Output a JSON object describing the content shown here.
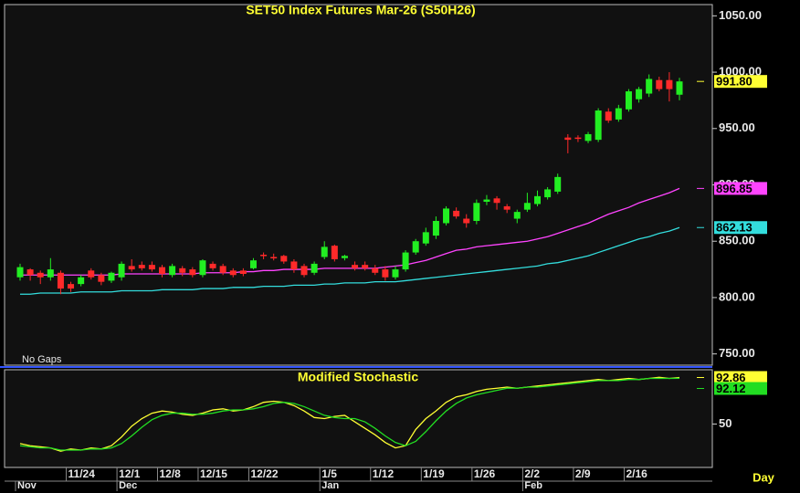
{
  "chart_data": [
    {
      "type": "candlestick",
      "title": "SET50 Index Futures Mar-26 (S50H26)",
      "note": "No Gaps",
      "up_color": "#22ee22",
      "down_color": "#ff2a2a",
      "last_label": "991.80",
      "label_color": "#ffff33",
      "open": [
        818,
        825,
        822,
        818,
        822,
        812,
        812,
        824,
        820,
        815,
        818,
        828,
        829,
        829,
        827,
        820,
        826,
        825,
        820,
        830,
        828,
        824,
        824,
        826,
        838,
        836,
        837,
        832,
        828,
        822,
        836,
        846,
        835,
        829,
        829,
        826,
        825,
        818,
        825,
        840,
        848,
        855,
        866,
        877,
        870,
        868,
        885,
        888,
        881,
        870,
        878,
        883,
        889,
        894,
        942,
        942,
        939,
        940,
        965,
        958,
        967,
        976,
        981,
        993,
        993,
        980
      ],
      "high": [
        830,
        826,
        824,
        835,
        824,
        814,
        820,
        826,
        822,
        823,
        832,
        834,
        832,
        832,
        829,
        830,
        828,
        827,
        834,
        832,
        830,
        826,
        826,
        835,
        840,
        839,
        838,
        834,
        830,
        832,
        850,
        847,
        838,
        832,
        832,
        829,
        828,
        828,
        842,
        852,
        862,
        872,
        881,
        880,
        874,
        887,
        891,
        890,
        883,
        878,
        893,
        895,
        898,
        910,
        945,
        944,
        947,
        968,
        968,
        971,
        985,
        987,
        998,
        996,
        1000,
        995
      ],
      "low": [
        815,
        815,
        812,
        815,
        803,
        805,
        810,
        816,
        811,
        813,
        815,
        823,
        824,
        823,
        818,
        818,
        819,
        818,
        818,
        824,
        820,
        818,
        819,
        825,
        834,
        833,
        830,
        822,
        818,
        820,
        834,
        832,
        833,
        824,
        824,
        820,
        815,
        816,
        823,
        838,
        846,
        852,
        864,
        870,
        862,
        865,
        882,
        878,
        875,
        866,
        876,
        881,
        887,
        892,
        928,
        938,
        937,
        938,
        955,
        956,
        965,
        973,
        978,
        983,
        974,
        975
      ],
      "close": [
        827,
        820,
        818,
        825,
        808,
        808,
        818,
        818,
        814,
        822,
        830,
        825,
        826,
        825,
        821,
        828,
        822,
        820,
        833,
        826,
        822,
        820,
        821,
        833,
        837,
        835,
        832,
        825,
        820,
        830,
        845,
        834,
        837,
        826,
        826,
        822,
        818,
        825,
        840,
        850,
        858,
        868,
        879,
        872,
        866,
        884,
        887,
        884,
        878,
        876,
        884,
        890,
        896,
        907,
        940,
        941,
        945,
        966,
        957,
        968,
        983,
        985,
        994,
        985,
        985,
        991.8
      ],
      "ylim": [
        740,
        1060
      ],
      "yticks": [
        {
          "value": 750,
          "label": "750.00"
        },
        {
          "value": 800,
          "label": "800.00"
        },
        {
          "value": 850,
          "label": "850.00"
        },
        {
          "value": 900,
          "label": "900.00"
        },
        {
          "value": 950,
          "label": "950.00"
        },
        {
          "value": 1000,
          "label": "1000.00"
        },
        {
          "value": 1050,
          "label": "1050.00"
        }
      ],
      "series": [
        {
          "color": "#ff44ff",
          "last_label": "896.85",
          "values": [
            820,
            820,
            820,
            820,
            820,
            820,
            820,
            820,
            820,
            820,
            821,
            821,
            821,
            821,
            821,
            821,
            821,
            821,
            822,
            822,
            822,
            822,
            823,
            823,
            824,
            824,
            825,
            825,
            825,
            825,
            826,
            826,
            826,
            826,
            826,
            826,
            827,
            828,
            829,
            831,
            833,
            836,
            839,
            842,
            843,
            845,
            846,
            847,
            848,
            849,
            850,
            852,
            854,
            857,
            860,
            863,
            866,
            870,
            874,
            877,
            880,
            884,
            887,
            890,
            893,
            896.85
          ]
        },
        {
          "color": "#33dddd",
          "last_label": "862.13",
          "values": [
            803,
            803,
            804,
            804,
            804,
            804,
            805,
            805,
            805,
            805,
            806,
            806,
            806,
            806,
            807,
            807,
            807,
            807,
            808,
            808,
            808,
            809,
            809,
            809,
            810,
            810,
            810,
            811,
            811,
            811,
            812,
            812,
            813,
            813,
            813,
            814,
            814,
            814,
            815,
            816,
            817,
            818,
            819,
            820,
            821,
            822,
            823,
            824,
            825,
            826,
            827,
            828,
            830,
            831,
            833,
            835,
            837,
            840,
            843,
            846,
            849,
            852,
            854,
            857,
            859,
            862.13
          ]
        }
      ]
    },
    {
      "type": "line",
      "title": "Modified Stochastic",
      "xlabel": "Day",
      "categories": [
        null,
        null,
        null,
        null,
        null,
        "11/24",
        null,
        null,
        null,
        null,
        "12/1",
        null,
        null,
        null,
        "12/8",
        null,
        null,
        null,
        "12/15",
        null,
        null,
        null,
        null,
        "12/22",
        null,
        null,
        null,
        null,
        null,
        null,
        "1/5",
        null,
        null,
        null,
        null,
        "1/12",
        null,
        null,
        null,
        null,
        "1/19",
        null,
        null,
        null,
        null,
        "1/26",
        null,
        null,
        null,
        null,
        "2/2",
        null,
        null,
        null,
        null,
        "2/9",
        null,
        null,
        null,
        null,
        "2/16",
        null,
        null,
        null,
        null,
        null
      ],
      "months": [
        "Nov",
        null,
        null,
        null,
        null,
        null,
        null,
        null,
        null,
        null,
        "Dec",
        null,
        null,
        null,
        null,
        null,
        null,
        null,
        null,
        null,
        null,
        null,
        null,
        null,
        null,
        null,
        null,
        null,
        null,
        null,
        "Jan",
        null,
        null,
        null,
        null,
        null,
        null,
        null,
        null,
        null,
        null,
        null,
        null,
        null,
        null,
        null,
        null,
        null,
        null,
        null,
        "Feb",
        null,
        null,
        null,
        null,
        null,
        null,
        null,
        null,
        null,
        null,
        null,
        null,
        null,
        null,
        null
      ],
      "ylim": [
        10,
        100
      ],
      "yticks": [
        50
      ],
      "series": [
        {
          "color": "#ffff33",
          "last_label": "92.86",
          "values": [
            32,
            30,
            29,
            28,
            25,
            27,
            26,
            28,
            27,
            30,
            38,
            48,
            55,
            60,
            62,
            61,
            59,
            58,
            60,
            63,
            64,
            62,
            63,
            66,
            70,
            71,
            70,
            67,
            62,
            56,
            55,
            57,
            58,
            52,
            46,
            40,
            33,
            28,
            30,
            45,
            55,
            62,
            70,
            75,
            77,
            80,
            82,
            83,
            84,
            83,
            84,
            85,
            86,
            87,
            88,
            89,
            90,
            91,
            90,
            91,
            92,
            91,
            92,
            93,
            92,
            92.86
          ]
        },
        {
          "color": "#22dd22",
          "last_label": "92.12",
          "values": [
            30,
            29,
            28,
            28,
            26,
            26,
            26,
            27,
            27,
            28,
            32,
            39,
            47,
            54,
            58,
            60,
            60,
            59,
            59,
            60,
            62,
            63,
            63,
            64,
            66,
            69,
            70,
            69,
            66,
            62,
            58,
            56,
            55,
            55,
            52,
            46,
            39,
            33,
            30,
            34,
            43,
            53,
            62,
            69,
            74,
            77,
            79,
            81,
            83,
            83,
            84,
            84,
            85,
            86,
            87,
            88,
            89,
            90,
            90,
            90,
            91,
            91,
            92,
            92,
            92,
            92.12
          ]
        }
      ]
    }
  ]
}
